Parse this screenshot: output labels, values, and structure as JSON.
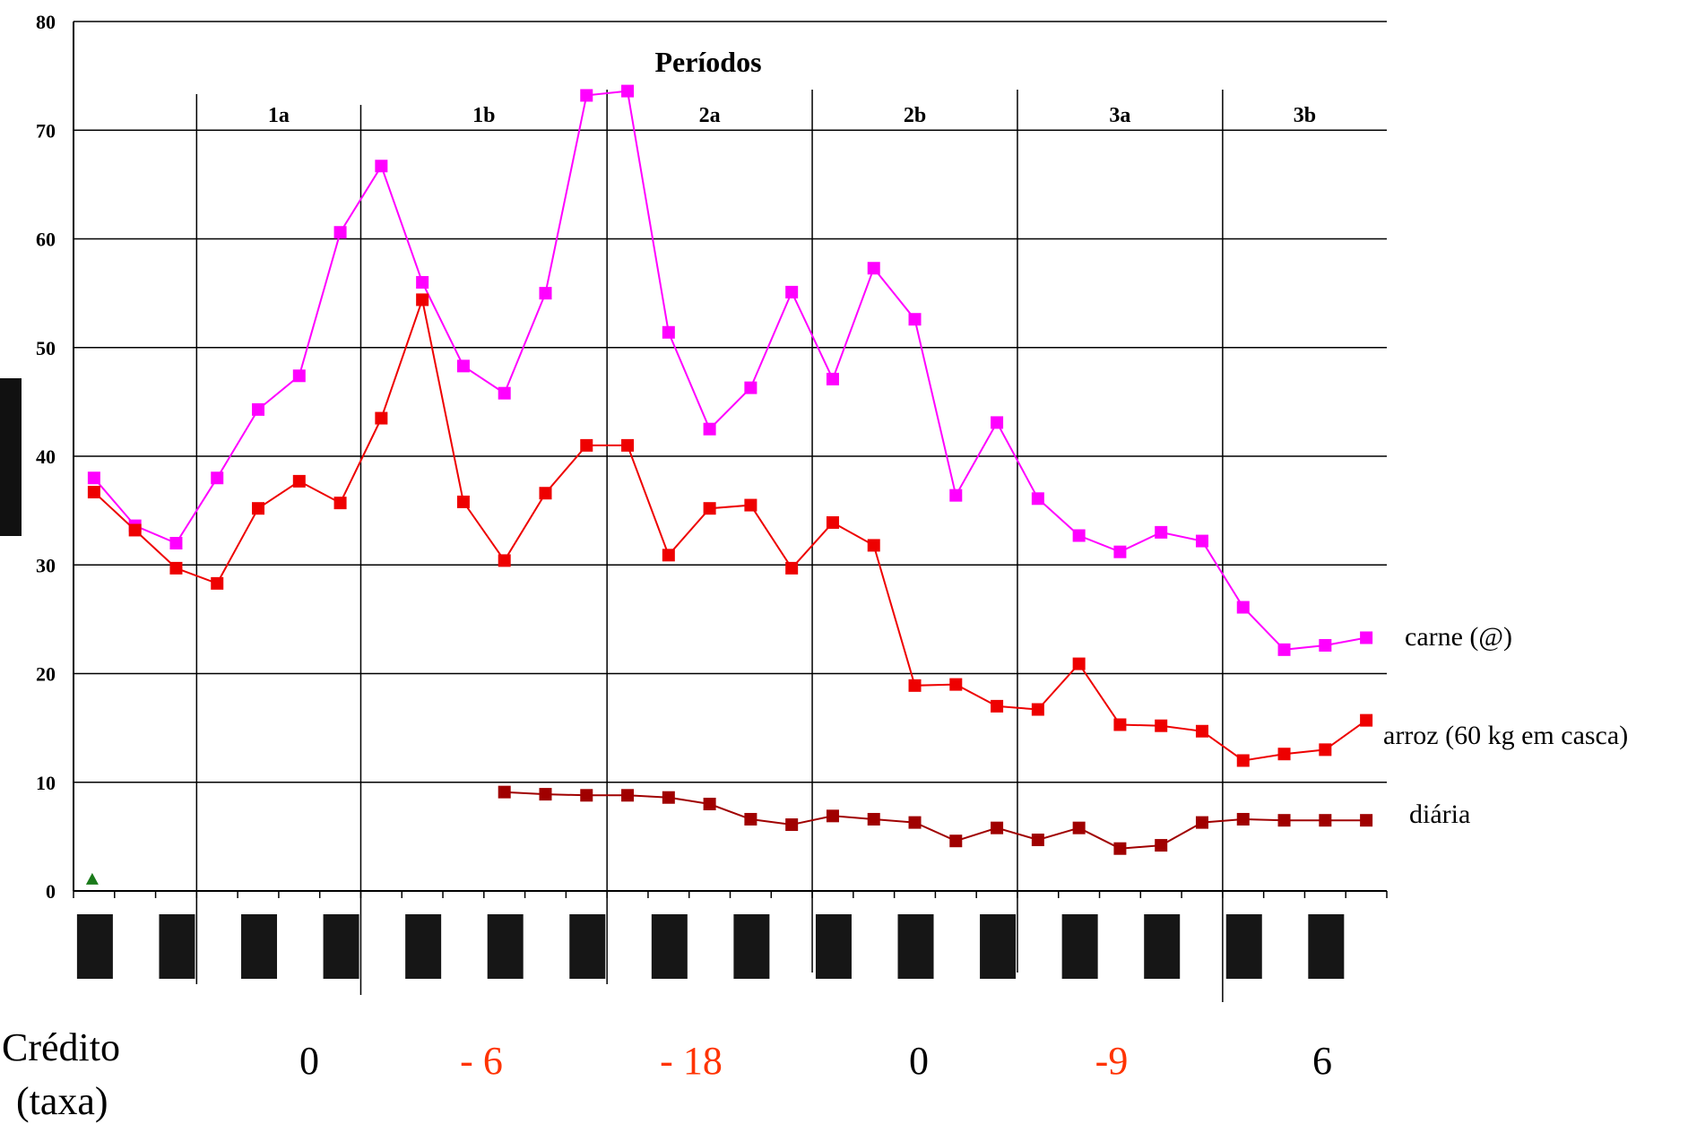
{
  "chart_data": {
    "type": "line",
    "title": "Períodos",
    "ylim": [
      0,
      80
    ],
    "y_ticks": [
      "0",
      "10",
      "20",
      "30",
      "40",
      "50",
      "60",
      "70",
      "80"
    ],
    "grid": true,
    "periods": [
      "1a",
      "1b",
      "2a",
      "2b",
      "3a",
      "3b"
    ],
    "series": [
      {
        "name": "carne (@)",
        "color": "#ff00ff",
        "start_index": 0,
        "values": [
          38,
          33.6,
          32,
          38,
          44.3,
          47.4,
          60.6,
          66.7,
          56,
          48.3,
          45.8,
          55,
          73.2,
          73.6,
          51.4,
          42.5,
          46.3,
          55.1,
          47.1,
          57.3,
          52.6,
          36.4,
          43.1,
          36.1,
          32.7,
          31.2,
          33,
          32.2,
          26.1,
          22.2,
          22.6,
          23.3
        ]
      },
      {
        "name": "arroz (60 kg em casca)",
        "color": "#ee0000",
        "start_index": 0,
        "values": [
          36.7,
          33.2,
          29.7,
          28.3,
          35.2,
          37.7,
          35.7,
          43.5,
          54.4,
          35.8,
          30.4,
          36.6,
          41,
          41,
          30.9,
          35.2,
          35.5,
          29.7,
          33.9,
          31.8,
          18.9,
          19,
          17,
          16.7,
          20.9,
          15.3,
          15.2,
          14.7,
          12,
          12.6,
          13,
          15.7
        ]
      },
      {
        "name": "diária",
        "color": "#a00000",
        "start_index": 10,
        "values": [
          9.1,
          8.9,
          8.8,
          8.8,
          8.6,
          8,
          6.6,
          6.1,
          6.9,
          6.6,
          6.3,
          4.6,
          5.8,
          4.7,
          5.8,
          3.9,
          4.2,
          6.3,
          6.6,
          6.5,
          6.5,
          6.5
        ]
      }
    ],
    "marker_point": {
      "index": 0,
      "value": 1,
      "color": "#1a7a1a"
    },
    "credit": {
      "title_line1": "Crédito",
      "title_line2": "(taxa)",
      "values": [
        {
          "text": "0",
          "color": "#000000"
        },
        {
          "text": "- 6",
          "color": "#ff3300"
        },
        {
          "text": "- 18",
          "color": "#ff3300"
        },
        {
          "text": "0",
          "color": "#000000"
        },
        {
          "text": "-9",
          "color": "#ff3300"
        },
        {
          "text": "6",
          "color": "#000000"
        }
      ]
    }
  }
}
